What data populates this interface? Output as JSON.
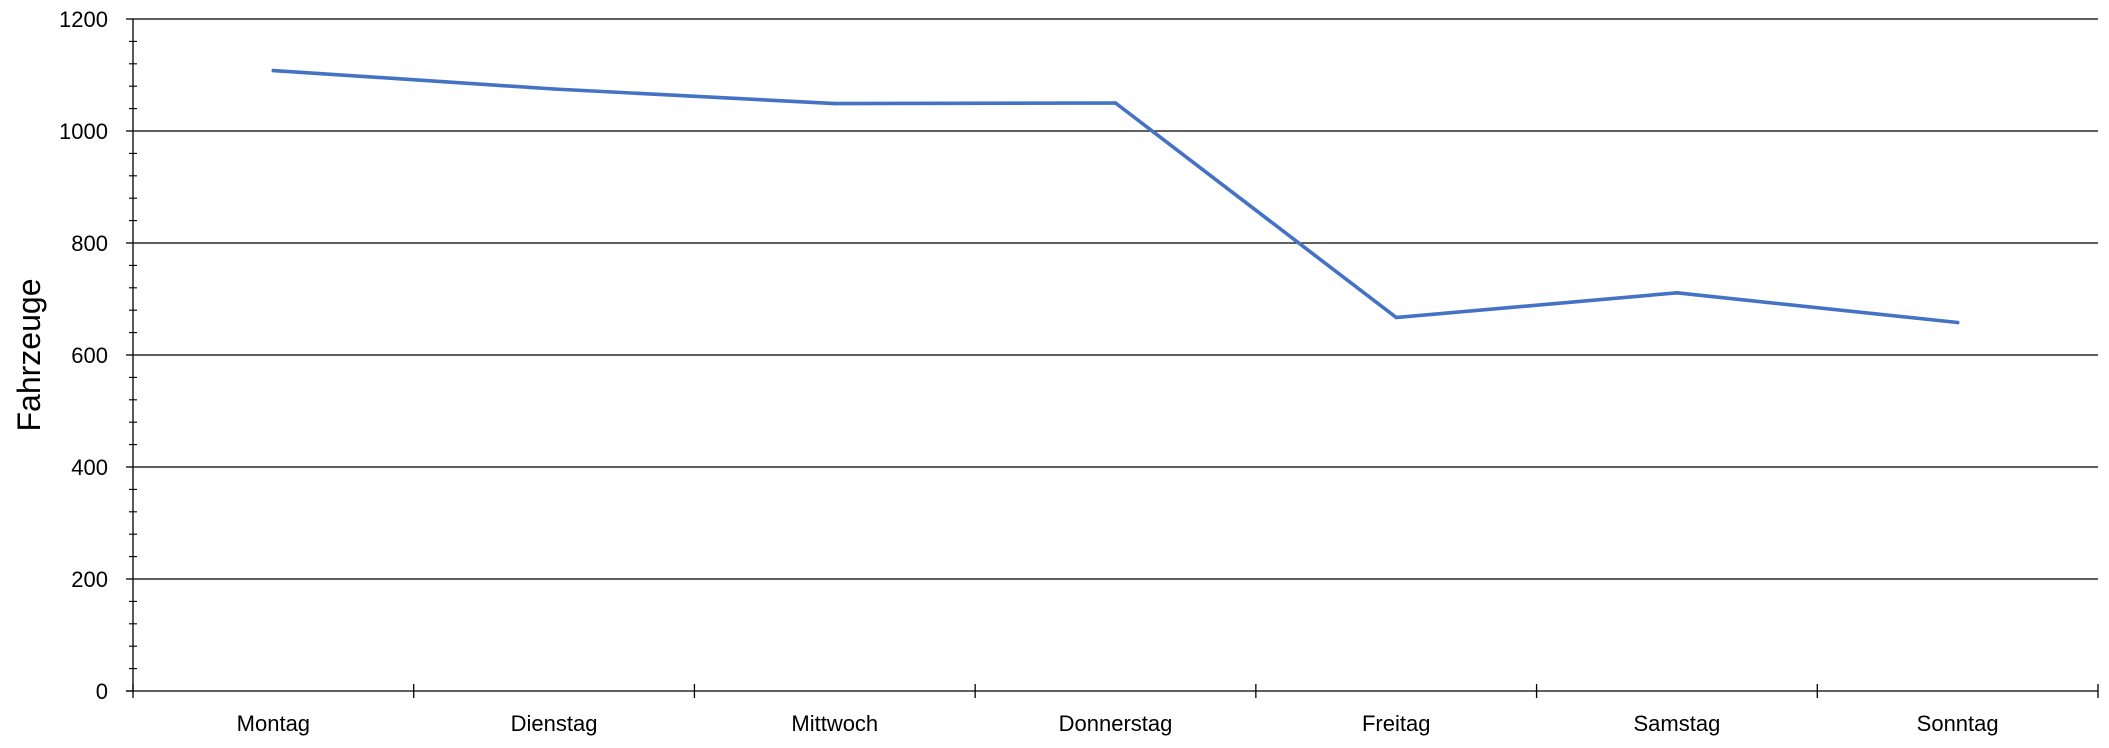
{
  "chart_data": {
    "type": "line",
    "title": "",
    "xlabel": "",
    "ylabel": "Fahrzeuge",
    "categories": [
      "Montag",
      "Dienstag",
      "Mittwoch",
      "Donnerstag",
      "Freitag",
      "Samstag",
      "Sonntag"
    ],
    "series": [
      {
        "values": [
          1108,
          1075,
          1049,
          1050,
          667,
          711,
          658
        ],
        "color": "#4472C4"
      }
    ],
    "ylim": [
      0,
      1200
    ],
    "y_major_ticks": [
      0,
      200,
      400,
      600,
      800,
      1000,
      1200
    ],
    "y_minor_step": 40,
    "grid": true,
    "gridline_color": "#000000",
    "legend": "none"
  }
}
